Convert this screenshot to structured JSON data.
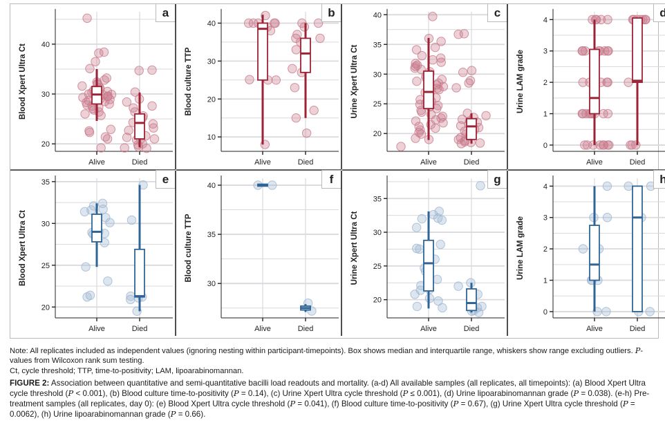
{
  "colors": {
    "group_all": "#9b2335",
    "group_all_point": "#c97a8c",
    "group_pre": "#2f6496",
    "group_pre_point": "#9fb6d1",
    "grid": "#d9d9de",
    "axis": "#222222",
    "frame": "#b9b9b9"
  },
  "chart_data": [
    {
      "panel": "a",
      "type": "box-strip",
      "row": "all",
      "ylabel": "Blood Xpert Ultra Ct",
      "categories": [
        "Alive",
        "Died"
      ],
      "ylim": [
        18.5,
        46.5
      ],
      "yticks": [
        20,
        30,
        40
      ],
      "ygrid_minor": [
        25,
        35,
        45
      ],
      "boxes": [
        {
          "group": "Alive",
          "q1": 28.0,
          "median": 29.9,
          "q3": 31.5,
          "whisker_low": 24.6,
          "whisker_high": 35.0
        },
        {
          "group": "Died",
          "q1": 21.0,
          "median": 24.2,
          "q3": 26.0,
          "whisker_low": 19.3,
          "whisker_high": 30.3
        }
      ],
      "points": {
        "Alive": [
          45.2,
          38.4,
          38.2,
          36.5,
          35.1,
          33.2,
          32.8,
          32.4,
          32.1,
          31.9,
          31.6,
          31.3,
          31.0,
          30.8,
          30.5,
          30.3,
          30.2,
          30.0,
          29.9,
          29.8,
          29.6,
          29.5,
          29.3,
          29.1,
          28.9,
          28.7,
          28.5,
          28.3,
          28.0,
          27.8,
          27.6,
          27.4,
          27.1,
          26.8,
          26.4,
          26.0,
          25.7,
          22.9,
          22.6,
          22.3,
          21.4,
          21.0,
          19.2
        ],
        "Died": [
          34.8,
          34.7,
          30.4,
          29.0,
          28.4,
          27.6,
          27.2,
          26.4,
          25.6,
          25.2,
          24.9,
          24.3,
          24.0,
          23.2,
          22.7,
          21.6,
          21.3,
          21.0,
          20.9,
          20.8,
          20.0,
          19.8,
          19.4,
          19.2,
          19.1
        ]
      }
    },
    {
      "panel": "b",
      "type": "box-strip",
      "row": "all",
      "ylabel": "Blood culture TTP",
      "categories": [
        "Alive",
        "Died"
      ],
      "ylim": [
        6.2,
        43.0
      ],
      "yticks": [
        10,
        20,
        30,
        40
      ],
      "ygrid_minor": [
        15,
        25,
        35
      ],
      "boxes": [
        {
          "group": "Alive",
          "q1": 25.0,
          "median": 38.5,
          "q3": 40.0,
          "whisker_low": 8.0,
          "whisker_high": 42.2
        },
        {
          "group": "Died",
          "q1": 27.0,
          "median": 32.0,
          "q3": 36.0,
          "whisker_low": 15.0,
          "whisker_high": 40.0
        }
      ],
      "points": {
        "Alive": [
          42.0,
          40.0,
          40.0,
          40.0,
          40.0,
          40.0,
          39.0,
          38.0,
          25.1,
          25.0,
          25.0,
          8.0
        ],
        "Died": [
          40.0,
          40.0,
          39.0,
          37.0,
          36.0,
          36.0,
          35.0,
          33.0,
          32.0,
          28.0,
          28.0,
          27.0,
          23.0,
          17.0,
          15.0,
          11.0
        ]
      }
    },
    {
      "panel": "c",
      "type": "box-strip",
      "row": "all",
      "ylabel": "Urine Xpert Ultra Ct",
      "categories": [
        "Alive",
        "Died"
      ],
      "ylim": [
        17.0,
        40.5
      ],
      "yticks": [
        20,
        25,
        30,
        35,
        40
      ],
      "ygrid_minor": [
        22.5,
        27.5,
        32.5,
        37.5
      ],
      "boxes": [
        {
          "group": "Alive",
          "q1": 24.2,
          "median": 27.0,
          "q3": 30.5,
          "whisker_low": 18.9,
          "whisker_high": 36.1
        },
        {
          "group": "Died",
          "q1": 19.0,
          "median": 21.2,
          "q3": 22.5,
          "whisker_low": 18.3,
          "whisker_high": 23.4
        }
      ],
      "points": {
        "Alive": [
          39.7,
          36.0,
          35.5,
          34.5,
          34.1,
          33.1,
          32.7,
          32.4,
          32.0,
          31.8,
          31.5,
          31.3,
          31.0,
          30.8,
          30.4,
          30.0,
          29.7,
          29.4,
          29.1,
          28.8,
          28.5,
          28.2,
          27.9,
          27.6,
          27.4,
          27.2,
          26.9,
          26.6,
          26.3,
          26.0,
          25.7,
          25.4,
          25.1,
          24.9,
          24.7,
          24.5,
          24.2,
          23.9,
          23.6,
          23.2,
          22.9,
          22.6,
          22.3,
          22.1,
          21.8,
          21.5,
          21.2,
          20.9,
          20.6,
          20.2,
          19.9,
          19.2,
          19.0
        ],
        "Died": [
          36.8,
          36.7,
          30.6,
          30.3,
          28.9,
          28.5,
          27.7,
          23.4,
          23.0,
          22.7,
          22.4,
          22.1,
          21.9,
          21.6,
          21.3,
          21.0,
          20.7,
          20.4,
          20.2,
          19.9,
          19.6,
          19.3,
          19.0,
          18.8,
          18.6,
          18.5,
          18.4,
          18.3
        ],
        "Other": [
          17.8
        ]
      }
    },
    {
      "panel": "d",
      "type": "box-strip",
      "row": "all",
      "ylabel": "Urine LAM grade",
      "categories": [
        "Alive",
        "Died"
      ],
      "ylim": [
        -0.2,
        4.25
      ],
      "yticks": [
        0,
        1,
        2,
        3,
        4
      ],
      "ygrid_minor": [
        0.5,
        1.5,
        2.5,
        3.5
      ],
      "boxes": [
        {
          "group": "Alive",
          "q1": 1.0,
          "median": 1.5,
          "q3": 3.05,
          "whisker_low": 0.0,
          "whisker_high": 4.0
        },
        {
          "group": "Died",
          "q1": 2.0,
          "median": 2.05,
          "q3": 4.05,
          "whisker_low": 0.0,
          "whisker_high": 4.0
        }
      ],
      "points": {
        "Alive": [
          4,
          4,
          4,
          4,
          4,
          3,
          3,
          3,
          3,
          3,
          3,
          3,
          3,
          2,
          2,
          2,
          2,
          2,
          1,
          1,
          1,
          1,
          1,
          1,
          1,
          1,
          1,
          0,
          0,
          0,
          0,
          0,
          0,
          0,
          0
        ],
        "Died": [
          4,
          4,
          4,
          4,
          4,
          4,
          4,
          2,
          0,
          0,
          0
        ]
      }
    },
    {
      "panel": "e",
      "type": "box-strip",
      "row": "pre",
      "ylabel": "Blood Xpert Ultra Ct",
      "categories": [
        "Alive",
        "Died"
      ],
      "ylim": [
        18.7,
        35.4
      ],
      "yticks": [
        20,
        25,
        30,
        35
      ],
      "ygrid_minor": [
        22.5,
        27.5,
        32.5
      ],
      "boxes": [
        {
          "group": "Alive",
          "q1": 27.8,
          "median": 29.0,
          "q3": 31.1,
          "whisker_low": 24.8,
          "whisker_high": 32.4
        },
        {
          "group": "Died",
          "q1": 21.2,
          "median": 21.3,
          "q3": 26.9,
          "whisker_low": 19.5,
          "whisker_high": 34.6
        }
      ],
      "points": {
        "Alive": [
          32.4,
          32.1,
          31.7,
          31.6,
          31.4,
          30.7,
          30.1,
          29.0,
          28.9,
          28.8,
          28.7,
          27.7,
          24.8,
          23.1,
          21.4,
          21.2
        ],
        "Died": [
          34.6,
          30.4,
          21.3,
          21.2,
          21.1,
          20.9,
          19.5
        ]
      }
    },
    {
      "panel": "f",
      "type": "box-strip",
      "row": "pre",
      "ylabel": "Blood culture TTP",
      "categories": [
        "Alive",
        "Died"
      ],
      "ylim": [
        26.5,
        40.7
      ],
      "yticks": [
        30,
        35,
        40
      ],
      "ygrid_minor": [
        27.5,
        32.5,
        37.5
      ],
      "boxes": [
        {
          "group": "Alive",
          "q1": 39.9,
          "median": 40.0,
          "q3": 40.1,
          "whisker_low": 40.0,
          "whisker_high": 40.0
        },
        {
          "group": "Died",
          "q1": 27.3,
          "median": 27.5,
          "q3": 27.7,
          "whisker_low": 27.1,
          "whisker_high": 27.9
        }
      ],
      "points": {
        "Alive": [
          40.0,
          40.0
        ],
        "Died": [
          28.0,
          27.2
        ]
      }
    },
    {
      "panel": "g",
      "type": "box-strip",
      "row": "pre",
      "ylabel": "Urine Xpert Ultra Ct",
      "categories": [
        "Alive",
        "Died"
      ],
      "ylim": [
        17.3,
        38.0
      ],
      "yticks": [
        20,
        25,
        30,
        35
      ],
      "ygrid_minor": [
        22.5,
        27.5,
        32.5,
        37.5
      ],
      "boxes": [
        {
          "group": "Alive",
          "q1": 21.3,
          "median": 25.4,
          "q3": 28.8,
          "whisker_low": 18.7,
          "whisker_high": 33.1
        },
        {
          "group": "Died",
          "q1": 18.4,
          "median": 19.5,
          "q3": 21.6,
          "whisker_low": 18.1,
          "whisker_high": 22.5
        }
      ],
      "points": {
        "Alive": [
          33.1,
          32.6,
          32.1,
          32.0,
          31.8,
          30.7,
          28.2,
          27.6,
          27.5,
          26.0,
          24.7,
          24.2,
          23.0,
          22.1,
          21.5,
          21.4,
          20.8,
          20.2,
          19.8,
          19.0,
          18.8
        ],
        "Died": [
          36.9,
          22.5,
          22.0,
          20.8,
          19.0,
          18.8,
          18.4,
          18.3,
          18.1
        ]
      }
    },
    {
      "panel": "h",
      "type": "box-strip",
      "row": "pre",
      "ylabel": "Urine LAM grade",
      "categories": [
        "Alive",
        "Died"
      ],
      "ylim": [
        -0.2,
        4.25
      ],
      "yticks": [
        0,
        1,
        2,
        3,
        4
      ],
      "ygrid_minor": [
        0.5,
        1.5,
        2.5,
        3.5
      ],
      "boxes": [
        {
          "group": "Alive",
          "q1": 1.0,
          "median": 1.5,
          "q3": 2.75,
          "whisker_low": 0.0,
          "whisker_high": 4.0
        },
        {
          "group": "Died",
          "q1": 0.0,
          "median": 3.0,
          "q3": 4.0,
          "whisker_low": 0.0,
          "whisker_high": 4.0
        }
      ],
      "points": {
        "Alive": [
          4,
          3,
          3,
          2,
          2,
          1,
          1,
          1,
          0,
          0
        ],
        "Died": [
          4,
          4,
          3,
          0,
          0
        ]
      }
    }
  ],
  "caption": {
    "note": "Note: All replicates included as independent values (ignoring nesting within participant-timepoints). Box shows median and interquartile range, whiskers show range excluding outliers. ",
    "note_p": "P",
    "note_tail": "-values from Wilcoxon rank sum testing.",
    "abbreviations": "Ct, cycle threshold; TTP, time-to-positivity; LAM, lipoarabinomannan.",
    "figure_label": "FIGURE 2:",
    "figure_parts": [
      " Association between quantitative and semi-quantitative bacilli load readouts and mortality. (a-d) All available samples (all replicates, all timepoints): (a) Blood Xpert Ultra cycle threshold (",
      "P",
      " < 0.001), (b) Blood culture time-to-positivity (",
      "P",
      " = 0.14), (c) Urine Xpert Ultra cycle threshold (",
      "P",
      " ≤ 0.001), (d) Urine lipoarabinomannan grade (",
      "P",
      " = 0.038). (e-h) Pre-treatment samples (all replicates, day 0): (e) Blood Xpert Ultra cycle threshold (",
      "P",
      " = 0.041), (f) Blood culture time-to-positivity (",
      "P",
      " = 0.67), (g) Urine Xpert Ultra cycle threshold (",
      "P",
      " = 0.0062), (h) Urine lipoarabinomannan grade (",
      "P",
      " = 0.66)."
    ]
  }
}
